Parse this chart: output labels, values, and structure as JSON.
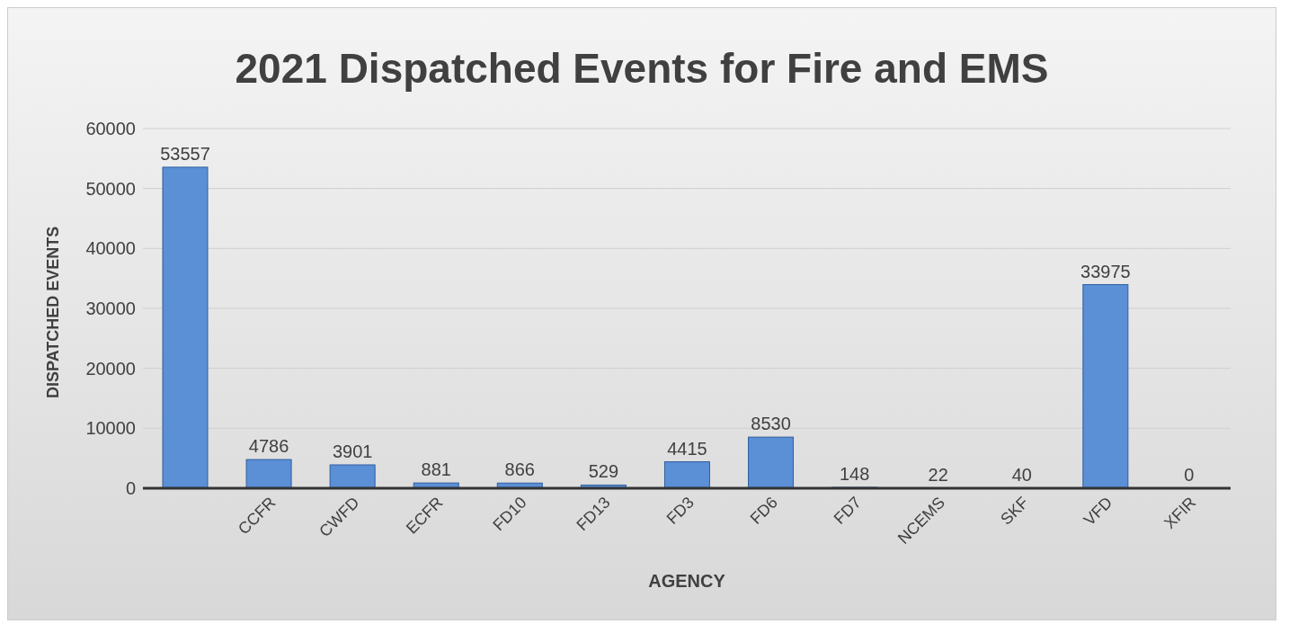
{
  "chart_data": {
    "type": "bar",
    "title": "2021 Dispatched Events for Fire and EMS",
    "xlabel": "AGENCY",
    "ylabel": "DISPATCHED EVENTS",
    "categories": [
      null,
      "CCFR",
      "CWFD",
      "ECFR",
      "FD10",
      "FD13",
      "FD3",
      "FD6",
      "FD7",
      "NCEMS",
      "SKF",
      "VFD",
      "XFIR"
    ],
    "values": [
      53557,
      4786,
      3901,
      881,
      866,
      529,
      4415,
      8530,
      148,
      22,
      40,
      33975,
      0
    ],
    "color": "#5b8fd6",
    "ylim": [
      0,
      60000
    ],
    "yticks": [
      0,
      10000,
      20000,
      30000,
      40000,
      50000,
      60000
    ],
    "grid": "y",
    "data_labels": true
  }
}
